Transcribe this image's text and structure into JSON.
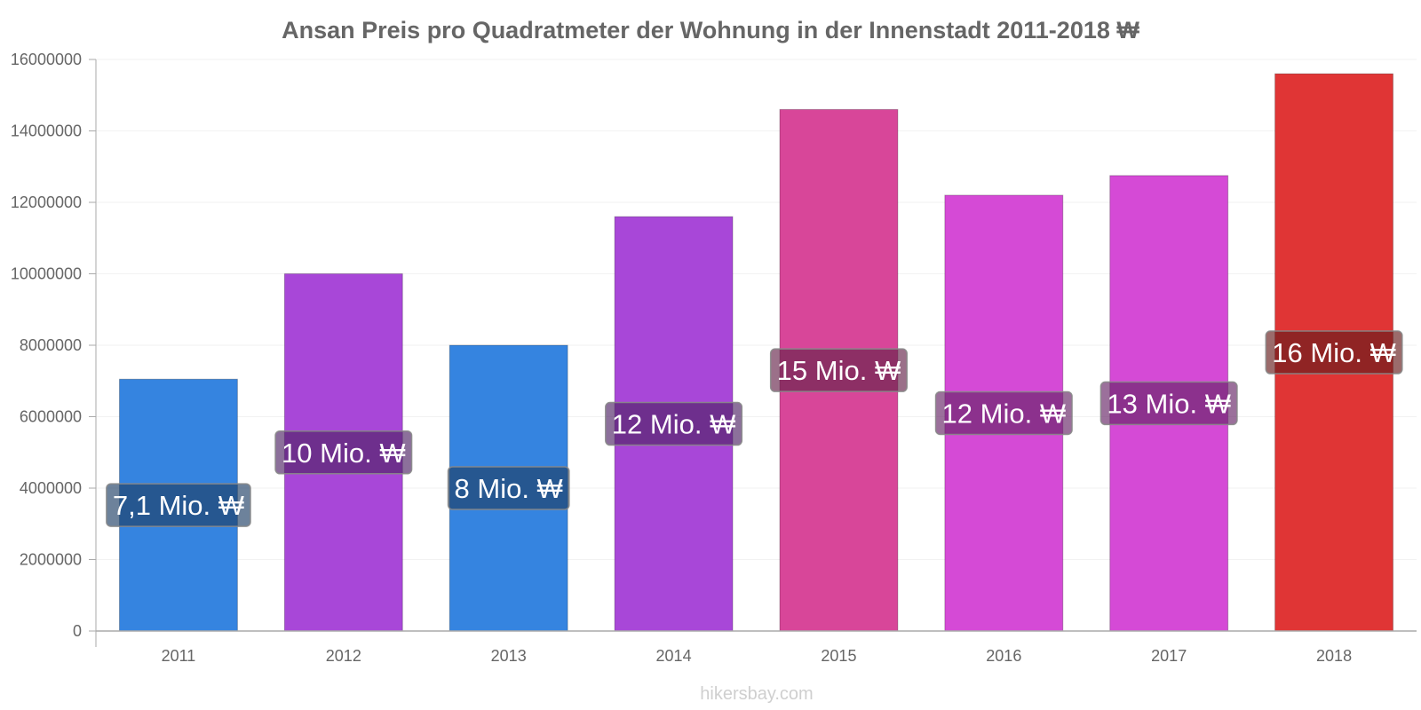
{
  "chart_data": {
    "type": "bar",
    "title": "Ansan Preis pro Quadratmeter der Wohnung in der Innenstadt 2011-2018 ₩",
    "xlabel": "",
    "ylabel": "",
    "categories": [
      "2011",
      "2012",
      "2013",
      "2014",
      "2015",
      "2016",
      "2017",
      "2018"
    ],
    "values": [
      7050000,
      10000000,
      8000000,
      11600000,
      14600000,
      12200000,
      12750000,
      15600000
    ],
    "data_labels": [
      "7,1 Mio. ₩",
      "10 Mio. ₩",
      "8 Mio. ₩",
      "12 Mio. ₩",
      "15 Mio. ₩",
      "12 Mio. ₩",
      "13 Mio. ₩",
      "16 Mio. ₩"
    ],
    "colors": [
      "#3584e0",
      "#a847d8",
      "#3584e0",
      "#a847d8",
      "#d84699",
      "#d54ad6",
      "#d54ad6",
      "#e03535"
    ],
    "label_bg_colors": [
      "#1e3f66",
      "#4f2466",
      "#1e3f66",
      "#4f2466",
      "#66234a",
      "#652466",
      "#652466",
      "#661b1b"
    ],
    "ylim": [
      0,
      16000000
    ],
    "yticks": [
      0,
      2000000,
      4000000,
      6000000,
      8000000,
      10000000,
      12000000,
      14000000,
      16000000
    ],
    "ytick_labels": [
      "0",
      "2000000",
      "4000000",
      "6000000",
      "8000000",
      "10000000",
      "12000000",
      "14000000",
      "16000000"
    ],
    "grid": true,
    "legend": "none"
  },
  "credit": "hikersbay.com"
}
